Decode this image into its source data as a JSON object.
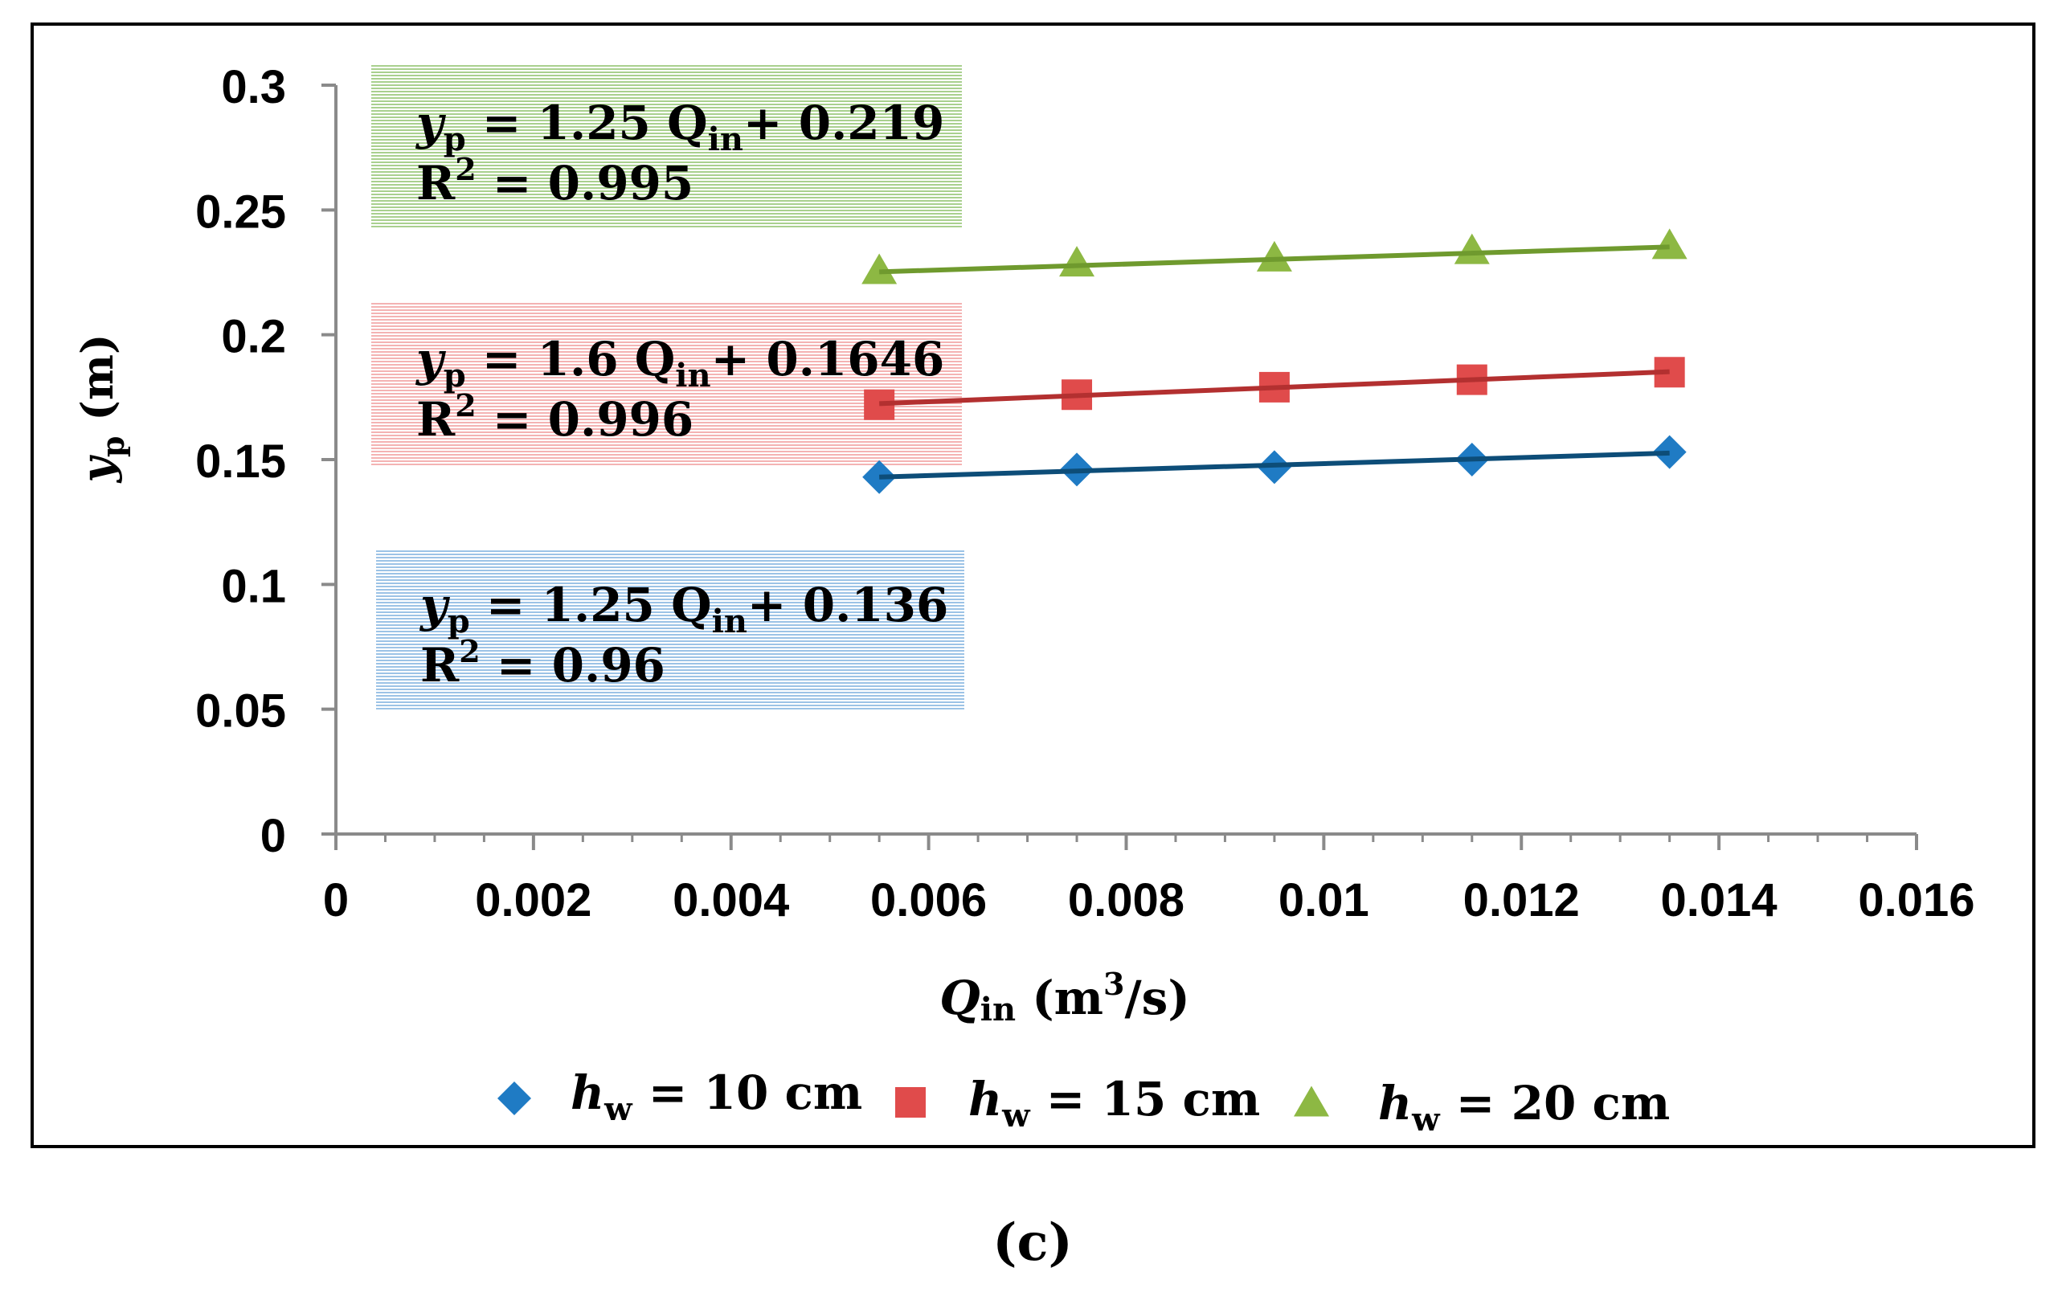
{
  "chart_data": {
    "type": "scatter",
    "panel_label": "(c)",
    "xlabel": {
      "main": "Q",
      "sub": "in",
      "unit_open": " (m",
      "unit_sup": "3",
      "unit_close": "/s)"
    },
    "ylabel": {
      "main": "y",
      "sub": "p",
      "unit": " (m)"
    },
    "xlim": [
      0,
      0.016
    ],
    "ylim": [
      0,
      0.3
    ],
    "x_ticks": [
      "0",
      "0.002",
      "0.004",
      "0.006",
      "0.008",
      "0.01",
      "0.012",
      "0.014",
      "0.016"
    ],
    "y_ticks": [
      "0",
      "0.05",
      "0.1",
      "0.15",
      "0.2",
      "0.25",
      "0.3"
    ],
    "x": [
      0.0055,
      0.0075,
      0.0095,
      0.0115,
      0.0135
    ],
    "series": [
      {
        "name": "h_w = 10 cm",
        "legend": {
          "main": "h",
          "sub": "w",
          "rest": " = 10 cm"
        },
        "marker": "diamond",
        "color": "#1F7BC4",
        "line_color": "#0D4D78",
        "values": [
          0.143,
          0.146,
          0.147,
          0.15,
          0.153
        ],
        "fit": {
          "slope": 1.25,
          "intercept": 0.136,
          "r2": 0.96
        },
        "equation": {
          "y": "y",
          "y_sub": "p",
          "mid": " = 1.25 Q",
          "q_sub": "in",
          "end": "+ 0.136",
          "r_label": "R",
          "r_sup": "2",
          "r_rest": " = 0.96"
        },
        "box_color": "#9CC3E6"
      },
      {
        "name": "h_w = 15 cm",
        "legend": {
          "main": "h",
          "sub": "w",
          "rest": " = 15 cm"
        },
        "marker": "square",
        "color": "#E04B4B",
        "line_color": "#B33030",
        "values": [
          0.172,
          0.176,
          0.179,
          0.182,
          0.185
        ],
        "fit": {
          "slope": 1.6,
          "intercept": 0.1646,
          "r2": 0.996
        },
        "equation": {
          "y": "y",
          "y_sub": "p",
          "mid": " = 1.6 Q",
          "q_sub": "in",
          "end": "+ 0.1646",
          "r_label": "R",
          "r_sup": "2",
          "r_rest": " = 0.996"
        },
        "box_color": "#F4B3B3"
      },
      {
        "name": "h_w = 20 cm",
        "legend": {
          "main": "h",
          "sub": "w",
          "rest": " = 20 cm"
        },
        "marker": "triangle",
        "color": "#8DB843",
        "line_color": "#6F9A2E",
        "values": [
          0.225,
          0.228,
          0.23,
          0.233,
          0.235
        ],
        "fit": {
          "slope": 1.25,
          "intercept": 0.219,
          "r2": 0.995
        },
        "equation": {
          "y": "y",
          "y_sub": "p",
          "mid": " = 1.25 Q",
          "q_sub": "in",
          "end": "+ 0.219",
          "r_label": "R",
          "r_sup": "2",
          "r_rest": " = 0.995"
        },
        "box_color": "#A9D08E"
      }
    ]
  }
}
